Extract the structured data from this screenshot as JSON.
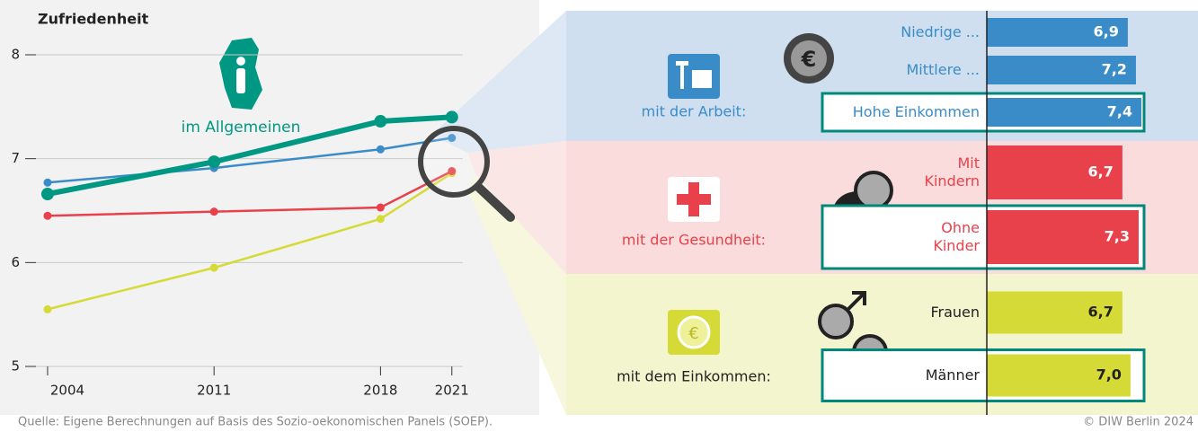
{
  "chart_data": [
    {
      "type": "line",
      "y_label": "Zufriedenheit",
      "x": [
        2004,
        2011,
        2018,
        2021
      ],
      "xlim": [
        2003,
        2021.5
      ],
      "xticks": [
        2004,
        2011,
        2018,
        2021
      ],
      "ylim": [
        5,
        8
      ],
      "yticks": [
        5,
        6,
        7,
        8
      ],
      "grid": true,
      "series": [
        {
          "name": "im Allgemeinen",
          "color": "#009882",
          "values": [
            6.66,
            6.97,
            7.36,
            7.4
          ]
        },
        {
          "color": "#3a8cc8",
          "values": [
            6.77,
            6.91,
            7.09,
            7.2
          ]
        },
        {
          "color": "#e8414b",
          "values": [
            6.45,
            6.49,
            6.53,
            6.88
          ]
        },
        {
          "color": "#d6da36",
          "values": [
            5.55,
            5.95,
            6.42,
            6.86
          ]
        }
      ]
    },
    {
      "type": "bar",
      "orientation": "horizontal",
      "xlim": [
        1.7,
        7.5
      ],
      "highlight_color": "#00897b",
      "groups": [
        {
          "label": "mit der Arbeit:",
          "color": "#3a8cc8",
          "background": "#cfdff0",
          "text_color": "#3a8cc8",
          "value_label_color": "#ffffff",
          "categories": [
            "Niedrige ...",
            "Mittlere ...",
            "Hohe Einkommen"
          ],
          "values": [
            6.9,
            7.2,
            7.4
          ],
          "value_labels": [
            "6,9",
            "7,2",
            "7,4"
          ],
          "highlight": 2
        },
        {
          "label": "mit der Gesundheit:",
          "color": "#e8414b",
          "background": "#fbdcdc",
          "text_color": "#e8414b",
          "value_label_color": "#ffffff",
          "categories": [
            "Mit Kindern",
            "Ohne Kinder"
          ],
          "values": [
            6.7,
            7.3
          ],
          "value_labels": [
            "6,7",
            "7,3"
          ],
          "highlight": 1
        },
        {
          "label": "mit dem Einkommen:",
          "color": "#d6da36",
          "background": "#f3f5cf",
          "text_color": "#222222",
          "value_label_color": "#222222",
          "categories": [
            "Frauen",
            "Männer"
          ],
          "values": [
            6.7,
            7.0
          ],
          "value_labels": [
            "6,7",
            "7,0"
          ],
          "highlight": 1
        }
      ]
    }
  ],
  "footer": {
    "source": "Quelle: Eigene Berechnungen auf Basis des Sozio-oekonomischen Panels (SOEP).",
    "copyright": "© DIW Berlin 2024"
  }
}
